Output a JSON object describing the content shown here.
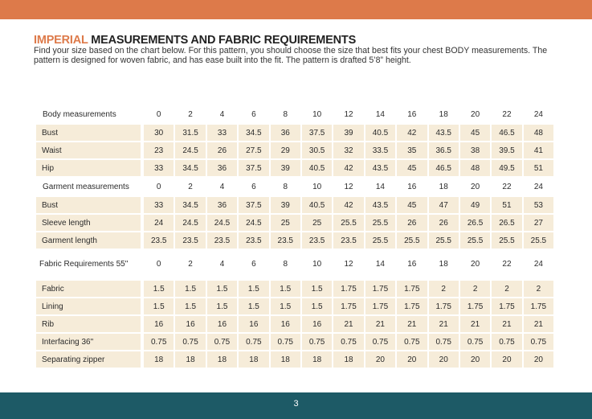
{
  "title": {
    "accent": "IMPERIAL",
    "rest": " MEASUREMENTS AND FABRIC REQUIREMENTS"
  },
  "intro": "Find your size based on the chart below. For this pattern, you should choose the size that best fits your chest BODY measurements.  The pattern is designed for woven fabric, and has ease built into the fit. The pattern is drafted 5’8” height.",
  "page_number": "3",
  "colors": {
    "top_bar": "#dd7a4a",
    "bottom_bar": "#1d5a66",
    "cell": "#f6ecd9",
    "accent": "#dd7a4a"
  },
  "sections": [
    {
      "header": "Body measurements",
      "sizes": [
        "0",
        "2",
        "4",
        "6",
        "8",
        "10",
        "12",
        "14",
        "16",
        "18",
        "20",
        "22",
        "24"
      ],
      "rows": [
        {
          "label": "Bust",
          "values": [
            "30",
            "31.5",
            "33",
            "34.5",
            "36",
            "37.5",
            "39",
            "40.5",
            "42",
            "43.5",
            "45",
            "46.5",
            "48"
          ]
        },
        {
          "label": "Waist",
          "values": [
            "23",
            "24.5",
            "26",
            "27.5",
            "29",
            "30.5",
            "32",
            "33.5",
            "35",
            "36.5",
            "38",
            "39.5",
            "41"
          ]
        },
        {
          "label": "Hip",
          "values": [
            "33",
            "34.5",
            "36",
            "37.5",
            "39",
            "40.5",
            "42",
            "43.5",
            "45",
            "46.5",
            "48",
            "49.5",
            "51"
          ]
        }
      ]
    },
    {
      "header": "Garment measurements",
      "sizes": [
        "0",
        "2",
        "4",
        "6",
        "8",
        "10",
        "12",
        "14",
        "16",
        "18",
        "20",
        "22",
        "24"
      ],
      "rows": [
        {
          "label": "Bust",
          "values": [
            "33",
            "34.5",
            "36",
            "37.5",
            "39",
            "40.5",
            "42",
            "43.5",
            "45",
            "47",
            "49",
            "51",
            "53"
          ]
        },
        {
          "label": "Sleeve length",
          "values": [
            "24",
            "24.5",
            "24.5",
            "24.5",
            "25",
            "25",
            "25.5",
            "25.5",
            "26",
            "26",
            "26.5",
            "26.5",
            "27"
          ]
        },
        {
          "label": "Garment length",
          "values": [
            "23.5",
            "23.5",
            "23.5",
            "23.5",
            "23.5",
            "23.5",
            "23.5",
            "25.5",
            "25.5",
            "25.5",
            "25.5",
            "25.5",
            "25.5"
          ]
        }
      ]
    },
    {
      "header": "Fabric Requirements 55\"",
      "sizes": [
        "0",
        "2",
        "4",
        "6",
        "8",
        "10",
        "12",
        "14",
        "16",
        "18",
        "20",
        "22",
        "24"
      ],
      "rows": [
        {
          "label": "Fabric",
          "values": [
            "1.5",
            "1.5",
            "1.5",
            "1.5",
            "1.5",
            "1.5",
            "1.75",
            "1.75",
            "1.75",
            "2",
            "2",
            "2",
            "2"
          ]
        },
        {
          "label": "Lining",
          "values": [
            "1.5",
            "1.5",
            "1.5",
            "1.5",
            "1.5",
            "1.5",
            "1.75",
            "1.75",
            "1.75",
            "1.75",
            "1.75",
            "1.75",
            "1.75"
          ]
        },
        {
          "label": "Rib",
          "values": [
            "16",
            "16",
            "16",
            "16",
            "16",
            "16",
            "21",
            "21",
            "21",
            "21",
            "21",
            "21",
            "21"
          ]
        },
        {
          "label": "Interfacing 36\"",
          "values": [
            "0.75",
            "0.75",
            "0.75",
            "0.75",
            "0.75",
            "0.75",
            "0.75",
            "0.75",
            "0.75",
            "0.75",
            "0.75",
            "0.75",
            "0.75"
          ]
        },
        {
          "label": "Separating zipper",
          "values": [
            "18",
            "18",
            "18",
            "18",
            "18",
            "18",
            "18",
            "20",
            "20",
            "20",
            "20",
            "20",
            "20"
          ]
        }
      ]
    }
  ]
}
